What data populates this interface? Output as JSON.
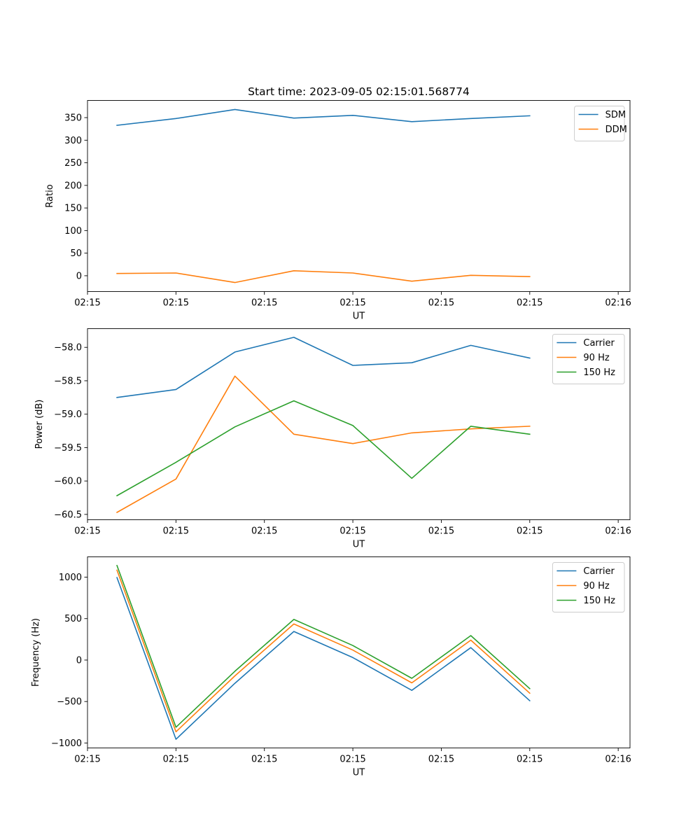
{
  "figure": {
    "title": "Start time: 2023-09-05 02:15:01.568774"
  },
  "chart_data": [
    {
      "type": "line",
      "xlabel": "UT",
      "ylabel": "Ratio",
      "x": [
        1,
        2,
        3,
        4,
        5,
        6,
        7,
        8
      ],
      "xlim": [
        0.5,
        9.7
      ],
      "xticks": [
        0.5,
        2.0,
        3.5,
        5.0,
        6.5,
        8.0,
        9.5
      ],
      "xtick_labels": [
        "02:15",
        "02:15",
        "02:15",
        "02:15",
        "02:15",
        "02:15",
        "02:16"
      ],
      "ylim": [
        -35,
        388
      ],
      "yticks": [
        0,
        50,
        100,
        150,
        200,
        250,
        300,
        350
      ],
      "legend_position": "top-right",
      "series": [
        {
          "name": "SDM",
          "color": "#1f77b4",
          "values": [
            333,
            348,
            368,
            349,
            355,
            341,
            348,
            354
          ]
        },
        {
          "name": "DDM",
          "color": "#ff7f0e",
          "values": [
            5,
            6,
            -15,
            11,
            6,
            -12,
            1,
            -2
          ]
        }
      ]
    },
    {
      "type": "line",
      "xlabel": "UT",
      "ylabel": "Power (dB)",
      "x": [
        1,
        2,
        3,
        4,
        5,
        6,
        7,
        8
      ],
      "xlim": [
        0.5,
        9.7
      ],
      "xticks": [
        0.5,
        2.0,
        3.5,
        5.0,
        6.5,
        8.0,
        9.5
      ],
      "xtick_labels": [
        "02:15",
        "02:15",
        "02:15",
        "02:15",
        "02:15",
        "02:15",
        "02:16"
      ],
      "ylim": [
        -60.58,
        -57.72
      ],
      "yticks": [
        -60.5,
        -60.0,
        -59.5,
        -59.0,
        -58.5,
        -58.0
      ],
      "ytick_labels": [
        "−60.5",
        "−60.0",
        "−59.5",
        "−59.0",
        "−58.5",
        "−58.0"
      ],
      "legend_position": "top-right",
      "series": [
        {
          "name": "Carrier",
          "color": "#1f77b4",
          "values": [
            -58.75,
            -58.63,
            -58.07,
            -57.85,
            -58.27,
            -58.23,
            -57.97,
            -58.16
          ]
        },
        {
          "name": "90 Hz",
          "color": "#ff7f0e",
          "values": [
            -60.47,
            -59.97,
            -58.43,
            -59.3,
            -59.44,
            -59.28,
            -59.22,
            -59.18
          ]
        },
        {
          "name": "150 Hz",
          "color": "#2ca02c",
          "values": [
            -60.22,
            -59.72,
            -59.19,
            -58.8,
            -59.17,
            -59.96,
            -59.18,
            -59.3
          ]
        }
      ]
    },
    {
      "type": "line",
      "xlabel": "UT",
      "ylabel": "Frequency (Hz)",
      "x": [
        1,
        2,
        3,
        4,
        5,
        6,
        7,
        8
      ],
      "xlim": [
        0.5,
        9.7
      ],
      "xticks": [
        0.5,
        2.0,
        3.5,
        5.0,
        6.5,
        8.0,
        9.5
      ],
      "xtick_labels": [
        "02:15",
        "02:15",
        "02:15",
        "02:15",
        "02:15",
        "02:15",
        "02:16"
      ],
      "ylim": [
        -1060,
        1245
      ],
      "yticks": [
        -1000,
        -500,
        0,
        500,
        1000
      ],
      "ytick_labels": [
        "−1000",
        "−500",
        "0",
        "500",
        "1000"
      ],
      "legend_position": "top-right",
      "series": [
        {
          "name": "Carrier",
          "color": "#1f77b4",
          "values": [
            995,
            -955,
            -280,
            345,
            30,
            -365,
            150,
            -490
          ]
        },
        {
          "name": "90 Hz",
          "color": "#ff7f0e",
          "values": [
            1085,
            -865,
            -190,
            435,
            120,
            -275,
            240,
            -400
          ]
        },
        {
          "name": "150 Hz",
          "color": "#2ca02c",
          "values": [
            1140,
            -810,
            -135,
            490,
            175,
            -220,
            295,
            -345
          ]
        }
      ]
    }
  ]
}
